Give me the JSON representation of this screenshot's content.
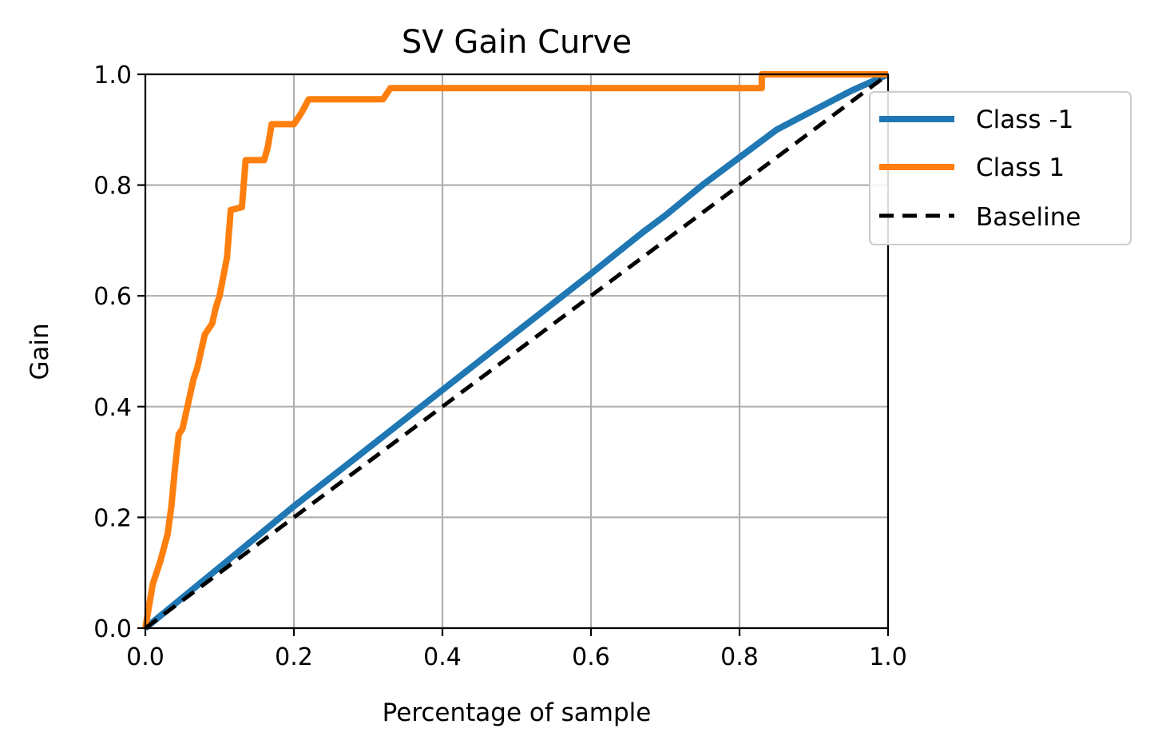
{
  "chart_data": {
    "type": "line",
    "title": "SV Gain Curve",
    "xlabel": "Percentage of sample",
    "ylabel": "Gain",
    "xlim": [
      0.0,
      1.0
    ],
    "ylim": [
      0.0,
      1.0
    ],
    "grid": true,
    "legend_position": "top-right",
    "xticks": [
      "0.0",
      "0.2",
      "0.4",
      "0.6",
      "0.8",
      "1.0"
    ],
    "yticks": [
      "0.0",
      "0.2",
      "0.4",
      "0.6",
      "0.8",
      "1.0"
    ],
    "series": [
      {
        "name": "Class -1",
        "color": "#1f77b4",
        "style": "solid",
        "x": [
          0.0,
          0.1,
          0.2,
          0.3,
          0.4,
          0.5,
          0.6,
          0.67,
          0.7,
          0.75,
          0.8,
          0.85,
          0.9,
          0.95,
          1.0
        ],
        "y": [
          0.0,
          0.11,
          0.22,
          0.325,
          0.43,
          0.535,
          0.64,
          0.715,
          0.745,
          0.8,
          0.85,
          0.9,
          0.935,
          0.97,
          1.0
        ]
      },
      {
        "name": "Class 1",
        "color": "#ff7f0e",
        "style": "solid",
        "x": [
          0.0,
          0.01,
          0.02,
          0.03,
          0.035,
          0.04,
          0.045,
          0.05,
          0.06,
          0.065,
          0.07,
          0.08,
          0.09,
          0.095,
          0.1,
          0.11,
          0.115,
          0.13,
          0.135,
          0.16,
          0.165,
          0.17,
          0.2,
          0.21,
          0.22,
          0.32,
          0.33,
          0.83,
          0.83,
          1.0
        ],
        "y": [
          0.0,
          0.08,
          0.12,
          0.17,
          0.22,
          0.29,
          0.35,
          0.36,
          0.42,
          0.45,
          0.47,
          0.53,
          0.55,
          0.58,
          0.6,
          0.67,
          0.755,
          0.76,
          0.845,
          0.845,
          0.87,
          0.91,
          0.91,
          0.93,
          0.955,
          0.955,
          0.975,
          0.975,
          1.0,
          1.0
        ]
      },
      {
        "name": "Baseline",
        "color": "#000000",
        "style": "dashed",
        "x": [
          0.0,
          1.0
        ],
        "y": [
          0.0,
          1.0
        ]
      }
    ]
  }
}
